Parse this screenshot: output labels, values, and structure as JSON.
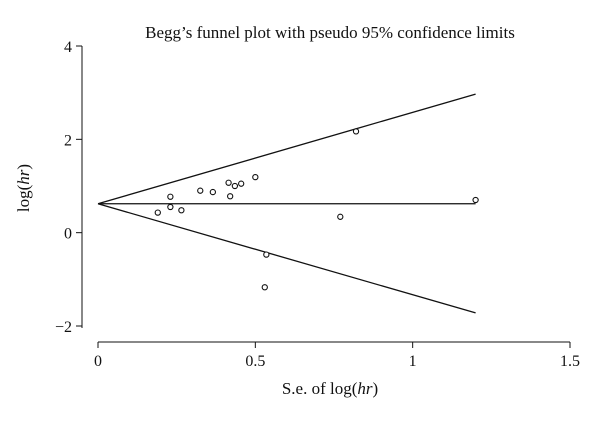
{
  "chart_data": {
    "type": "scatter",
    "title": "Begg’s funnel plot with pseudo 95% confidence limits",
    "xlabel": {
      "prefix": "S.e. of log(",
      "italic": "hr",
      "suffix": ")"
    },
    "ylabel": {
      "prefix": "log(",
      "italic": "hr",
      "suffix": ")"
    },
    "xlim": [
      0,
      1.5
    ],
    "ylim": [
      -2,
      4
    ],
    "xticks": [
      {
        "value": 0,
        "label": "0"
      },
      {
        "value": 0.5,
        "label": "0.5"
      },
      {
        "value": 1,
        "label": "1"
      },
      {
        "value": 1.5,
        "label": "1.5"
      }
    ],
    "yticks": [
      {
        "value": -2,
        "label": "−2"
      },
      {
        "value": 0,
        "label": "0"
      },
      {
        "value": 2,
        "label": "2"
      },
      {
        "value": 4,
        "label": "4"
      }
    ],
    "pooled_estimate": 0.62,
    "funnel_limits": {
      "x_start": 0,
      "x_end": 1.2,
      "upper_end": 2.97,
      "lower_end": -1.72
    },
    "points": [
      {
        "x": 0.19,
        "y": 0.43
      },
      {
        "x": 0.23,
        "y": 0.77
      },
      {
        "x": 0.23,
        "y": 0.55
      },
      {
        "x": 0.265,
        "y": 0.48
      },
      {
        "x": 0.325,
        "y": 0.9
      },
      {
        "x": 0.365,
        "y": 0.87
      },
      {
        "x": 0.415,
        "y": 1.07
      },
      {
        "x": 0.42,
        "y": 0.78
      },
      {
        "x": 0.435,
        "y": 1.0
      },
      {
        "x": 0.455,
        "y": 1.05
      },
      {
        "x": 0.5,
        "y": 1.19
      },
      {
        "x": 0.53,
        "y": -1.17
      },
      {
        "x": 0.535,
        "y": -0.47
      },
      {
        "x": 0.77,
        "y": 0.34
      },
      {
        "x": 0.82,
        "y": 2.17
      },
      {
        "x": 1.2,
        "y": 0.7
      }
    ]
  }
}
